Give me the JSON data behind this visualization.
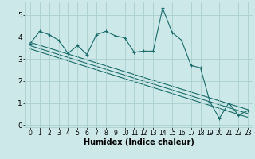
{
  "xlabel": "Humidex (Indice chaleur)",
  "background_color": "#cce8e8",
  "grid_color": "#aacfcf",
  "line_color": "#1a6b6b",
  "xlim": [
    -0.5,
    23.5
  ],
  "ylim": [
    -0.1,
    5.6
  ],
  "xticks": [
    0,
    1,
    2,
    3,
    4,
    5,
    6,
    7,
    8,
    9,
    10,
    11,
    12,
    13,
    14,
    15,
    16,
    17,
    18,
    19,
    20,
    21,
    22,
    23
  ],
  "yticks": [
    0,
    1,
    2,
    3,
    4,
    5
  ],
  "series_x": [
    0,
    1,
    2,
    3,
    4,
    5,
    6,
    7,
    8,
    9,
    10,
    11,
    12,
    13,
    14,
    15,
    16,
    17,
    18,
    19,
    20,
    21,
    22,
    23
  ],
  "series_y": [
    3.7,
    4.25,
    4.1,
    3.85,
    3.25,
    3.6,
    3.2,
    4.1,
    4.25,
    4.05,
    3.95,
    3.3,
    3.35,
    3.35,
    5.3,
    4.2,
    3.85,
    2.7,
    2.6,
    1.05,
    0.3,
    1.0,
    0.45,
    0.65
  ],
  "trend_lines": [
    {
      "x": [
        0,
        23
      ],
      "y": [
        3.75,
        0.7
      ]
    },
    {
      "x": [
        0,
        23
      ],
      "y": [
        3.6,
        0.52
      ]
    },
    {
      "x": [
        0,
        23
      ],
      "y": [
        3.45,
        0.35
      ]
    }
  ]
}
